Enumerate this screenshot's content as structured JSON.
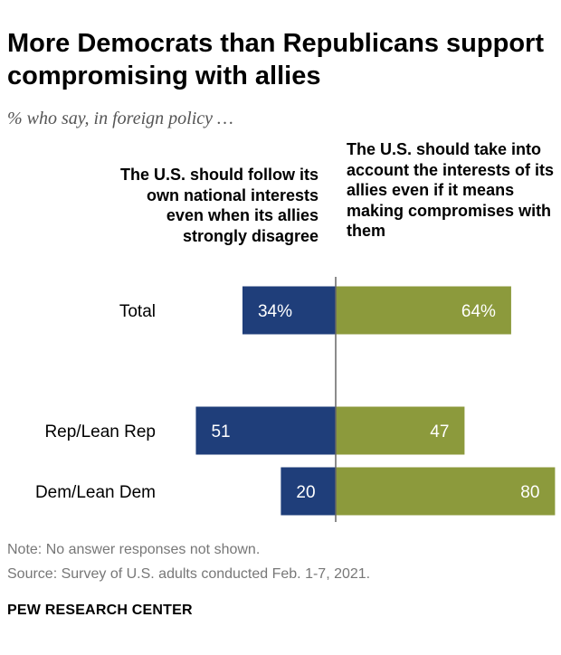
{
  "title": "More Democrats than Republicans support compromising with allies",
  "subtitle": "% who say, in foreign policy …",
  "chart_data": {
    "type": "bar",
    "orientation": "horizontal-diverging",
    "categories": [
      "Total",
      "Rep/Lean Rep",
      "Dem/Lean Dem"
    ],
    "series": [
      {
        "name": "The U.S. should follow its own national interests even when its allies strongly disagree",
        "values": [
          34,
          51,
          20
        ],
        "labels": [
          "34%",
          "51",
          "20"
        ],
        "color": "#1f3e7a"
      },
      {
        "name": "The U.S. should take into account the interests of its allies even if it means making compromises with them",
        "values": [
          64,
          47,
          80
        ],
        "labels": [
          "64%",
          "47",
          "80"
        ],
        "color": "#8c9a3c"
      }
    ],
    "xlim": [
      -51,
      80
    ],
    "grid": false,
    "legend": "column headers above bars"
  },
  "footer": {
    "note": "Note: No answer responses not shown.",
    "source": "Source: Survey of U.S. adults conducted Feb. 1-7, 2021.",
    "brand": "PEW RESEARCH CENTER"
  }
}
